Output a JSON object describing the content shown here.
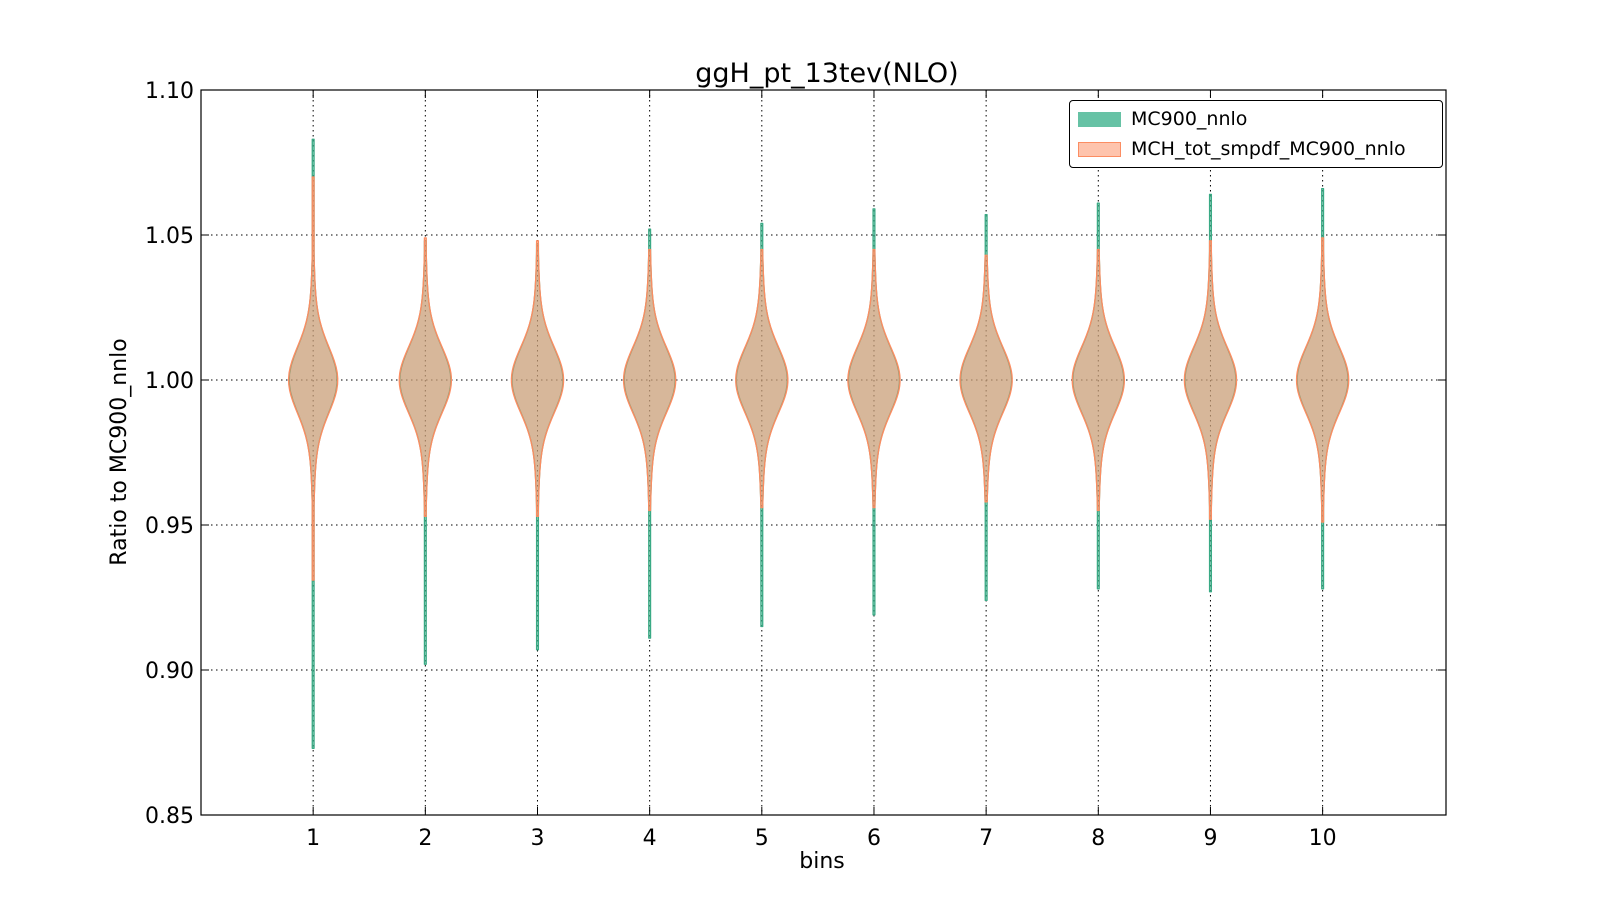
{
  "chart_data": {
    "type": "violin",
    "title": "ggH_pt_13tev(NLO)",
    "xlabel": "bins",
    "ylabel": "Ratio to MC900_nnlo",
    "ylim": [
      0.85,
      1.1
    ],
    "xlim": [
      0,
      11.1
    ],
    "yticks": [
      "0.85",
      "0.90",
      "0.95",
      "1.00",
      "1.05",
      "1.10"
    ],
    "xticks": [
      "1",
      "2",
      "3",
      "4",
      "5",
      "6",
      "7",
      "8",
      "9",
      "10"
    ],
    "grid": true,
    "legend_position": "top-right",
    "series": [
      {
        "name": "MC900_nnlo",
        "color": "#66c2a5",
        "edge_color": "#3aaa85",
        "bins": [
          {
            "x": 1,
            "min": 0.873,
            "max": 1.083,
            "center": 1.0
          },
          {
            "x": 2,
            "min": 0.902,
            "max": 1.048,
            "center": 1.0
          },
          {
            "x": 3,
            "min": 0.907,
            "max": 1.047,
            "center": 1.0
          },
          {
            "x": 4,
            "min": 0.911,
            "max": 1.052,
            "center": 1.0
          },
          {
            "x": 5,
            "min": 0.915,
            "max": 1.054,
            "center": 1.0
          },
          {
            "x": 6,
            "min": 0.919,
            "max": 1.059,
            "center": 1.0
          },
          {
            "x": 7,
            "min": 0.924,
            "max": 1.057,
            "center": 1.0
          },
          {
            "x": 8,
            "min": 0.928,
            "max": 1.061,
            "center": 1.0
          },
          {
            "x": 9,
            "min": 0.927,
            "max": 1.064,
            "center": 1.0
          },
          {
            "x": 10,
            "min": 0.928,
            "max": 1.066,
            "center": 1.0
          }
        ]
      },
      {
        "name": "MCH_tot_smpdf_MC900_nnlo",
        "color": "#fc8d62",
        "edge_color": "#fc8d62",
        "bins": [
          {
            "x": 1,
            "min": 0.931,
            "max": 1.07,
            "center": 1.0
          },
          {
            "x": 2,
            "min": 0.953,
            "max": 1.049,
            "center": 1.0
          },
          {
            "x": 3,
            "min": 0.953,
            "max": 1.048,
            "center": 1.0
          },
          {
            "x": 4,
            "min": 0.955,
            "max": 1.045,
            "center": 1.0
          },
          {
            "x": 5,
            "min": 0.956,
            "max": 1.045,
            "center": 1.0
          },
          {
            "x": 6,
            "min": 0.956,
            "max": 1.045,
            "center": 1.0
          },
          {
            "x": 7,
            "min": 0.958,
            "max": 1.043,
            "center": 1.0
          },
          {
            "x": 8,
            "min": 0.955,
            "max": 1.045,
            "center": 1.0
          },
          {
            "x": 9,
            "min": 0.952,
            "max": 1.048,
            "center": 1.0
          },
          {
            "x": 10,
            "min": 0.951,
            "max": 1.049,
            "center": 1.0
          }
        ]
      }
    ]
  }
}
